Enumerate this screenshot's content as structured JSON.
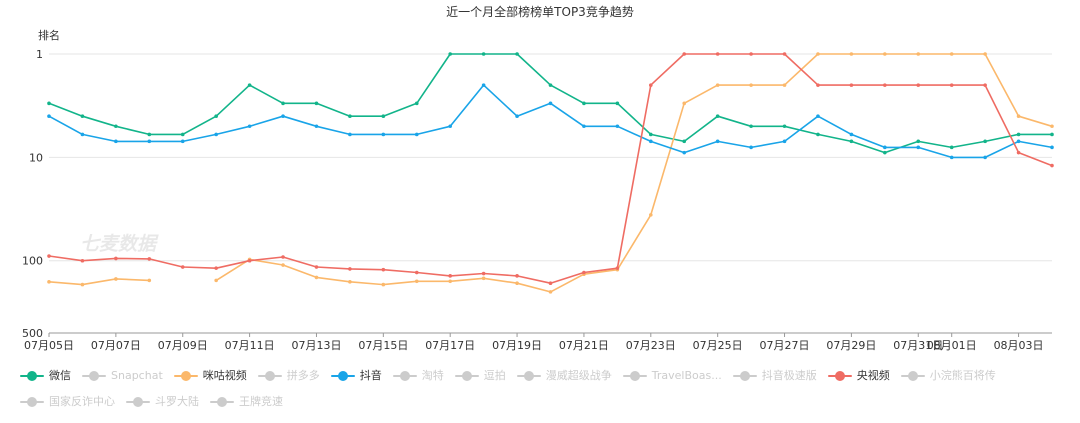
{
  "chart_data": {
    "type": "line",
    "title": "近一个月全部榜榜单TOP3竞争趋势",
    "ylabel": "排名",
    "y_axis": {
      "scale": "log",
      "inverted": true,
      "range": [
        1,
        500
      ],
      "ticks": [
        1,
        10,
        100,
        500
      ]
    },
    "watermark": "七麦数据",
    "x_dates": [
      "07月05日",
      "07月06日",
      "07月07日",
      "07月08日",
      "07月09日",
      "07月10日",
      "07月11日",
      "07月12日",
      "07月13日",
      "07月14日",
      "07月15日",
      "07月16日",
      "07月17日",
      "07月18日",
      "07月19日",
      "07月20日",
      "07月21日",
      "07月22日",
      "07月23日",
      "07月24日",
      "07月25日",
      "07月26日",
      "07月27日",
      "07月28日",
      "07月29日",
      "07月30日",
      "07月31日",
      "08月01日",
      "08月02日",
      "08月03日",
      "08月04日"
    ],
    "x_tick_labels": [
      "07月05日",
      "07月07日",
      "07月09日",
      "07月11日",
      "07月13日",
      "07月15日",
      "07月17日",
      "07月19日",
      "07月21日",
      "07月23日",
      "07月25日",
      "07月27日",
      "07月29日",
      "07月31日",
      "08月01日",
      "08月03日"
    ],
    "grid": true,
    "legend_position": "bottom-left",
    "series": [
      {
        "name": "微信",
        "color": "#12b48a",
        "active": true,
        "values": [
          3,
          4,
          5,
          6,
          6,
          4,
          2,
          3,
          3,
          4,
          4,
          3,
          1,
          1,
          1,
          2,
          3,
          3,
          6,
          7,
          4,
          5,
          5,
          6,
          7,
          9,
          7,
          8,
          7,
          6,
          6
        ]
      },
      {
        "name": "Snapchat",
        "color": "#cccccc",
        "active": false,
        "values": []
      },
      {
        "name": "咪咕视频",
        "color": "#fbb86b",
        "active": true,
        "values": [
          160,
          170,
          150,
          155,
          null,
          155,
          97,
          110,
          145,
          160,
          170,
          158,
          158,
          148,
          165,
          200,
          135,
          122,
          36,
          3,
          2,
          2,
          2,
          1,
          1,
          1,
          1,
          1,
          1,
          4,
          5
        ]
      },
      {
        "name": "拼多多",
        "color": "#cccccc",
        "active": false,
        "values": []
      },
      {
        "name": "抖音",
        "color": "#19a4e8",
        "active": true,
        "values": [
          4,
          6,
          7,
          7,
          7,
          6,
          5,
          4,
          5,
          6,
          6,
          6,
          5,
          2,
          4,
          3,
          5,
          5,
          7,
          9,
          7,
          8,
          7,
          4,
          6,
          8,
          8,
          10,
          10,
          7,
          8
        ]
      },
      {
        "name": "淘特",
        "color": "#cccccc",
        "active": false,
        "values": []
      },
      {
        "name": "逗拍",
        "color": "#cccccc",
        "active": false,
        "values": []
      },
      {
        "name": "漫威超级战争",
        "color": "#cccccc",
        "active": false,
        "values": []
      },
      {
        "name": "TravelBoas...",
        "color": "#cccccc",
        "active": false,
        "values": []
      },
      {
        "name": "抖音极速版",
        "color": "#cccccc",
        "active": false,
        "values": []
      },
      {
        "name": "央视频",
        "color": "#ef6c63",
        "active": true,
        "values": [
          90,
          100,
          95,
          96,
          115,
          118,
          100,
          92,
          115,
          120,
          122,
          130,
          140,
          133,
          140,
          165,
          130,
          118,
          2,
          1,
          1,
          1,
          1,
          2,
          2,
          2,
          2,
          2,
          2,
          9,
          12
        ]
      },
      {
        "name": "小浣熊百将传",
        "color": "#cccccc",
        "active": false,
        "values": []
      },
      {
        "name": "国家反诈中心",
        "color": "#cccccc",
        "active": false,
        "values": []
      },
      {
        "name": "斗罗大陆",
        "color": "#cccccc",
        "active": false,
        "values": []
      },
      {
        "name": "王牌竞速",
        "color": "#cccccc",
        "active": false,
        "values": []
      }
    ]
  }
}
